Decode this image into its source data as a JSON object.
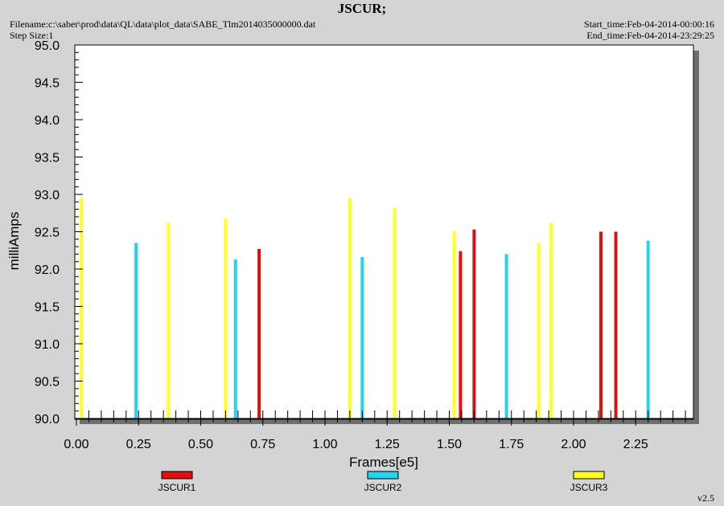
{
  "header": {
    "title": "JSCUR;",
    "filename": "Filename:c:\\saber\\prod\\data\\QL\\data\\plot_data\\SABE_Tlm2014035000000.dat",
    "step_size": "Step Size:1",
    "start_time": "Start_time:Feb-04-2014-00:00:16",
    "end_time": "End_time:Feb-04-2014-23:29:25"
  },
  "version": "v2.5",
  "colors": {
    "JSCUR1": "#e01010",
    "JSCUR2": "#22d4ee",
    "JSCUR3": "#ffff22",
    "plot_bg": "#ffffff",
    "frame_shadow": "#6e6e6e",
    "page_bg": "#d4d4d4"
  },
  "chart_data": {
    "type": "bar",
    "xlabel": "Frames[e5]",
    "ylabel": "milliAmps",
    "xlim": [
      0.0,
      2.475
    ],
    "ylim": [
      90.0,
      95.0
    ],
    "xticks": [
      "0.00",
      "0.25",
      "0.50",
      "0.75",
      "1.00",
      "1.25",
      "1.50",
      "1.75",
      "2.00",
      "2.25"
    ],
    "xtick_values": [
      0.0,
      0.25,
      0.5,
      0.75,
      1.0,
      1.25,
      1.5,
      1.75,
      2.0,
      2.25
    ],
    "yticks": [
      "90.0",
      "90.5",
      "91.0",
      "91.5",
      "92.0",
      "92.5",
      "93.0",
      "93.5",
      "94.0",
      "94.5",
      "95.0"
    ],
    "ytick_values": [
      90.0,
      90.5,
      91.0,
      91.5,
      92.0,
      92.5,
      93.0,
      93.5,
      94.0,
      94.5,
      95.0
    ],
    "grid": false,
    "legend_position": "bottom",
    "series": [
      {
        "name": "JSCUR1",
        "x": [
          0.735,
          1.545,
          1.6,
          2.11,
          2.17
        ],
        "values": [
          92.27,
          92.24,
          92.53,
          92.5,
          92.5
        ]
      },
      {
        "name": "JSCUR2",
        "x": [
          0.24,
          0.64,
          1.15,
          1.73,
          2.3
        ],
        "values": [
          92.35,
          92.13,
          92.16,
          92.2,
          92.38
        ]
      },
      {
        "name": "JSCUR3",
        "x": [
          0.02,
          0.37,
          0.6,
          1.1,
          1.28,
          1.52,
          1.86,
          1.91
        ],
        "values": [
          92.95,
          92.62,
          92.68,
          92.95,
          92.82,
          92.51,
          92.35,
          92.62
        ]
      }
    ]
  }
}
